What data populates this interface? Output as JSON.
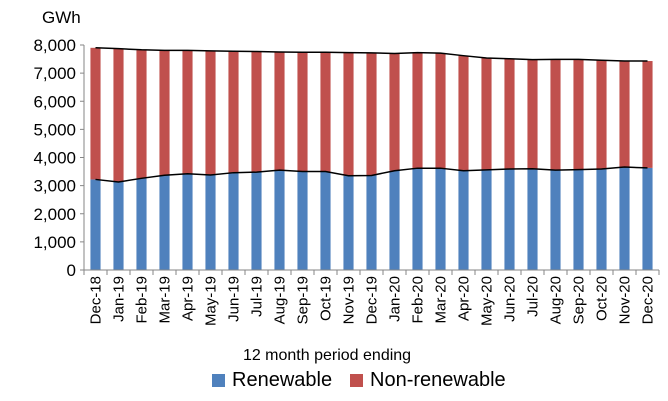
{
  "chart_data": {
    "type": "bar",
    "stacked": true,
    "unit_label": "GWh",
    "xlabel": "12 month period ending",
    "ylabel": "",
    "ylim": [
      0,
      8000
    ],
    "y_ticks": [
      0,
      1000,
      2000,
      3000,
      4000,
      5000,
      6000,
      7000,
      8000
    ],
    "y_tick_labels": [
      "0",
      "1,000",
      "2,000",
      "3,000",
      "4,000",
      "5,000",
      "6,000",
      "7,000",
      "8,000"
    ],
    "grid": false,
    "legend_position": "bottom",
    "categories": [
      "Dec-18",
      "Jan-19",
      "Feb-19",
      "Mar-19",
      "Apr-19",
      "May-19",
      "Jun-19",
      "Jul-19",
      "Aug-19",
      "Sep-19",
      "Oct-19",
      "Nov-19",
      "Dec-19",
      "Jan-20",
      "Feb-20",
      "Mar-20",
      "Apr-20",
      "May-20",
      "Jun-20",
      "Jul-20",
      "Aug-20",
      "Sep-20",
      "Oct-20",
      "Nov-20",
      "Dec-20"
    ],
    "series": [
      {
        "name": "Renewable",
        "color": "#4f81bd",
        "values": [
          3220,
          3130,
          3260,
          3370,
          3420,
          3380,
          3460,
          3480,
          3550,
          3500,
          3500,
          3350,
          3360,
          3530,
          3620,
          3620,
          3530,
          3560,
          3590,
          3600,
          3550,
          3570,
          3590,
          3660,
          3630
        ]
      },
      {
        "name": "Non-renewable",
        "color": "#c0504d",
        "values": [
          4680,
          4740,
          4570,
          4440,
          4390,
          4410,
          4320,
          4290,
          4200,
          4240,
          4240,
          4380,
          4360,
          4170,
          4110,
          4090,
          4090,
          3980,
          3920,
          3880,
          3940,
          3920,
          3870,
          3770,
          3800
        ]
      }
    ],
    "trend_lines": [
      {
        "of": "Renewable",
        "color": "#000000"
      },
      {
        "of": "Total",
        "color": "#000000"
      }
    ]
  }
}
